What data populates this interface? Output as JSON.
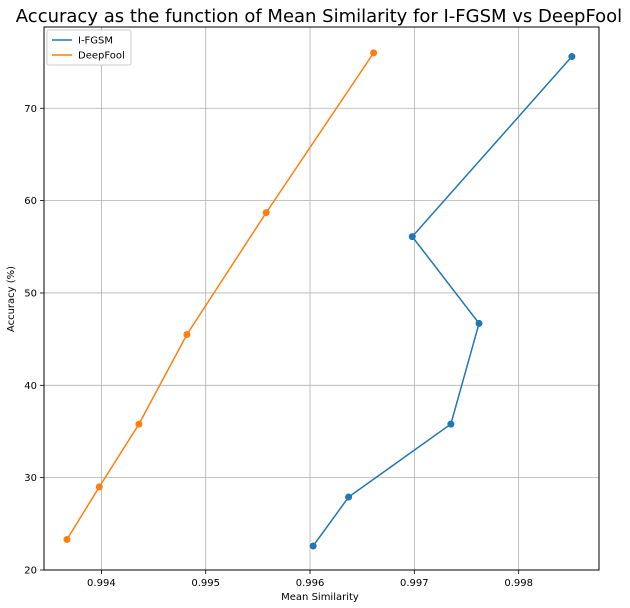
{
  "chart_data": {
    "type": "line",
    "title": "Accuracy as the function of Mean Similarity for I-FGSM vs DeepFool",
    "xlabel": "Mean Similarity",
    "ylabel": "Accuracy (%)",
    "xlim": [
      0.99345,
      0.99877
    ],
    "ylim": [
      20,
      78.8
    ],
    "x_ticks": [
      0.994,
      0.995,
      0.996,
      0.997,
      0.998
    ],
    "y_ticks": [
      20,
      30,
      40,
      50,
      60,
      70
    ],
    "grid": true,
    "legend_position": "top-left",
    "series": [
      {
        "name": "I-FGSM",
        "color": "#1f77b4",
        "x": [
          0.99603,
          0.99637,
          0.99735,
          0.99762,
          0.99698,
          0.99851
        ],
        "y": [
          22.6,
          27.9,
          35.8,
          46.7,
          56.1,
          75.6
        ]
      },
      {
        "name": "DeepFool",
        "color": "#ff7f0e",
        "x": [
          0.99367,
          0.99398,
          0.99436,
          0.99482,
          0.99558,
          0.99661
        ],
        "y": [
          23.3,
          29.0,
          35.8,
          45.5,
          58.7,
          76.0
        ]
      }
    ]
  }
}
